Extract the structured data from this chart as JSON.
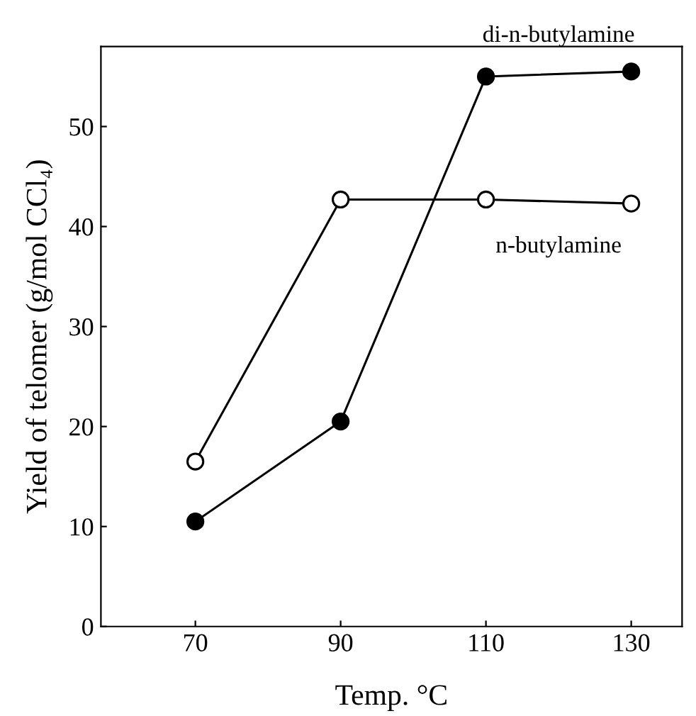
{
  "chart_data": {
    "type": "line",
    "xlabel": "Temp. °C",
    "ylabel": "Yield of telomer (g/mol CCl₄)",
    "x": [
      70,
      90,
      110,
      130
    ],
    "series": [
      {
        "name": "di-n-butylamine",
        "color": "#000000",
        "values": [
          10.5,
          20.5,
          55,
          55.5
        ]
      },
      {
        "name": "n-butylamine",
        "color": "#000000",
        "values": [
          16.5,
          42.7,
          42.7,
          42.3
        ]
      }
    ],
    "xlim": [
      57,
      137
    ],
    "ylim": [
      0,
      58
    ],
    "xticks": [
      70,
      90,
      110,
      130
    ],
    "yticks": [
      0,
      10,
      20,
      30,
      40,
      50
    ],
    "grid": false,
    "legend": false,
    "marker": "circle",
    "line_style": "solid"
  }
}
